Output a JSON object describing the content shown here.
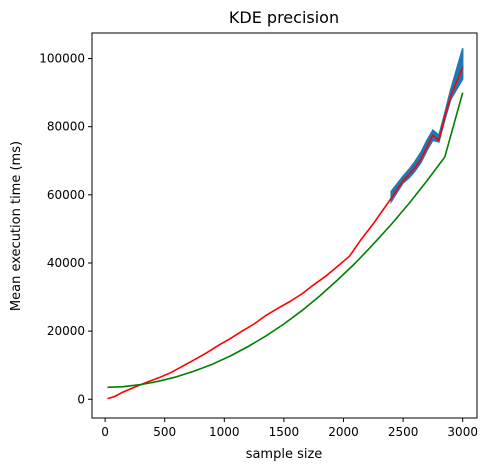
{
  "chart_data": {
    "type": "line",
    "title": "KDE precision",
    "xlabel": "sample size",
    "ylabel": "Mean execution time (ms)",
    "xlim": [
      -110,
      3120
    ],
    "ylim": [
      -5500,
      107500
    ],
    "xticks": [
      0,
      500,
      1000,
      1500,
      2000,
      2500,
      3000
    ],
    "yticks": [
      0,
      20000,
      40000,
      60000,
      80000,
      100000
    ],
    "grid": false,
    "legend": "none",
    "colors": {
      "measured": "#ff0000",
      "band": "#1f77b4",
      "fit": "#008000"
    },
    "series": [
      {
        "role": "measured",
        "x": [
          20,
          80,
          150,
          250,
          350,
          450,
          550,
          650,
          750,
          850,
          950,
          1050,
          1150,
          1250,
          1350,
          1450,
          1550,
          1650,
          1750,
          1850,
          1950,
          2050,
          2150,
          2250,
          2350,
          2450,
          2500,
          2550,
          2600,
          2650,
          2700,
          2750,
          2800,
          2850,
          2900,
          3000
        ],
        "y": [
          200,
          800,
          2100,
          3600,
          5000,
          6300,
          7800,
          9700,
          11600,
          13600,
          15800,
          17800,
          20000,
          22100,
          24600,
          26700,
          28700,
          30900,
          33600,
          36100,
          39000,
          42000,
          47000,
          51500,
          56500,
          61500,
          64000,
          66000,
          68000,
          70500,
          74000,
          77500,
          76000,
          83000,
          89000,
          97500
        ]
      },
      {
        "role": "band",
        "x": [
          2400,
          2500,
          2550,
          2600,
          2650,
          2700,
          2750,
          2800,
          2850,
          2900,
          3000
        ],
        "lower": [
          58000,
          63500,
          65000,
          67000,
          69500,
          73000,
          76000,
          75500,
          82000,
          88000,
          94000
        ],
        "upper": [
          61000,
          65500,
          67500,
          69800,
          72500,
          76000,
          79000,
          77500,
          84000,
          91000,
          103000
        ]
      },
      {
        "role": "fit",
        "x": [
          20,
          150,
          300,
          450,
          600,
          750,
          900,
          1050,
          1200,
          1350,
          1500,
          1650,
          1800,
          1950,
          2100,
          2250,
          2400,
          2550,
          2700,
          2850,
          3000
        ],
        "y": [
          3500,
          3700,
          4300,
          5300,
          6600,
          8300,
          10300,
          12700,
          15500,
          18600,
          22100,
          26000,
          30300,
          35000,
          40000,
          45500,
          51300,
          57500,
          64100,
          71100,
          90000
        ]
      }
    ]
  }
}
